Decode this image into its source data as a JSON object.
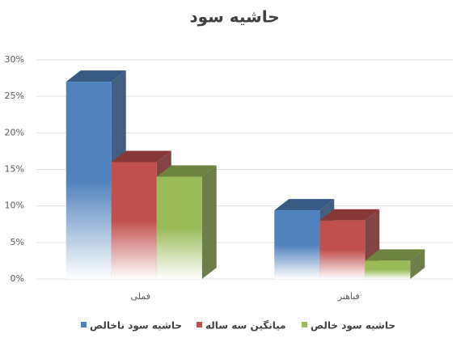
{
  "chart_data": {
    "type": "bar3d",
    "title": "حاشیه سود",
    "categories": [
      "فملی",
      "فباهنر"
    ],
    "series": [
      {
        "name": "حاشیه سود ناخالص",
        "color": "#4f81bd",
        "values": [
          27,
          9.4
        ]
      },
      {
        "name": "میانگین سه ساله",
        "color": "#c0504d",
        "values": [
          16,
          8
        ]
      },
      {
        "name": "حاشیه سود خالص",
        "color": "#9bbb59",
        "values": [
          14,
          2.5
        ]
      }
    ],
    "ylim": [
      0,
      30
    ],
    "yticks": [
      {
        "value": 0,
        "label": "0%"
      },
      {
        "value": 5,
        "label": "5%"
      },
      {
        "value": 10,
        "label": "10%"
      },
      {
        "value": 15,
        "label": "15%"
      },
      {
        "value": 20,
        "label": "20%"
      },
      {
        "value": 25,
        "label": "25%"
      },
      {
        "value": 30,
        "label": "30%"
      }
    ],
    "grid": true
  }
}
